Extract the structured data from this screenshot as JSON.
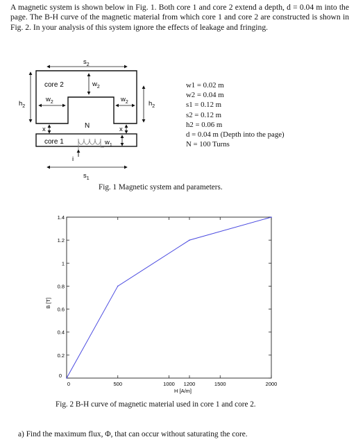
{
  "problem": {
    "intro": "A magnetic system is shown below in Fig. 1.  Both core 1 and core 2 extend a depth, d = 0.04 m into the page.  The B-H curve of the magnetic material from which core 1 and core 2 are constructed is shown in Fig. 2.  In your analysis of this system ignore the effects of leakage and fringing.",
    "question": "a)  Find the maximum flux, Φ, that can occur without saturating the core."
  },
  "figure1": {
    "labels": {
      "core2": "core 2",
      "core1": "core 1",
      "s2": "s",
      "s2_sub": "2",
      "s1": "s",
      "s1_sub": "1",
      "w2": "w",
      "w2_sub": "2",
      "w1": "w",
      "w1_sub": "1",
      "h2": "h",
      "h2_sub": "2",
      "x": "x",
      "N": "N",
      "i": "i"
    },
    "params": [
      "w1 = 0.02 m",
      "w2 = 0.04 m",
      "s1 = 0.12 m",
      "s2 = 0.12 m",
      "h2 = 0.06 m",
      "d = 0.04 m (Depth into the page)",
      "N = 100 Turns"
    ],
    "caption": "Fig. 1 Magnetic system and parameters."
  },
  "chart_data": {
    "type": "line",
    "series": [
      {
        "x": [
          0,
          500,
          1200,
          2000
        ],
        "y": [
          0,
          0.8,
          1.2,
          1.4
        ],
        "color": "#4a4ae0"
      }
    ],
    "xlabel": "H [A/m]",
    "ylabel": "B [T]",
    "xlim": [
      0,
      2000
    ],
    "ylim": [
      0,
      1.4
    ],
    "xticks": [
      0,
      500,
      1000,
      1200,
      1500,
      2000
    ],
    "xtick_labels": [
      "0",
      "500",
      "1000",
      "1200",
      "1500",
      "2000"
    ],
    "yticks": [
      0,
      0.2,
      0.4,
      0.6,
      0.8,
      1,
      1.2,
      1.4
    ],
    "ytick_labels": [
      "0",
      "0.2",
      "0.4",
      "0.6",
      "0.8",
      "1",
      "1.2",
      "1.4"
    ],
    "grid": false,
    "caption": "Fig. 2 B-H curve of magnetic material used in core 1 and core 2."
  }
}
